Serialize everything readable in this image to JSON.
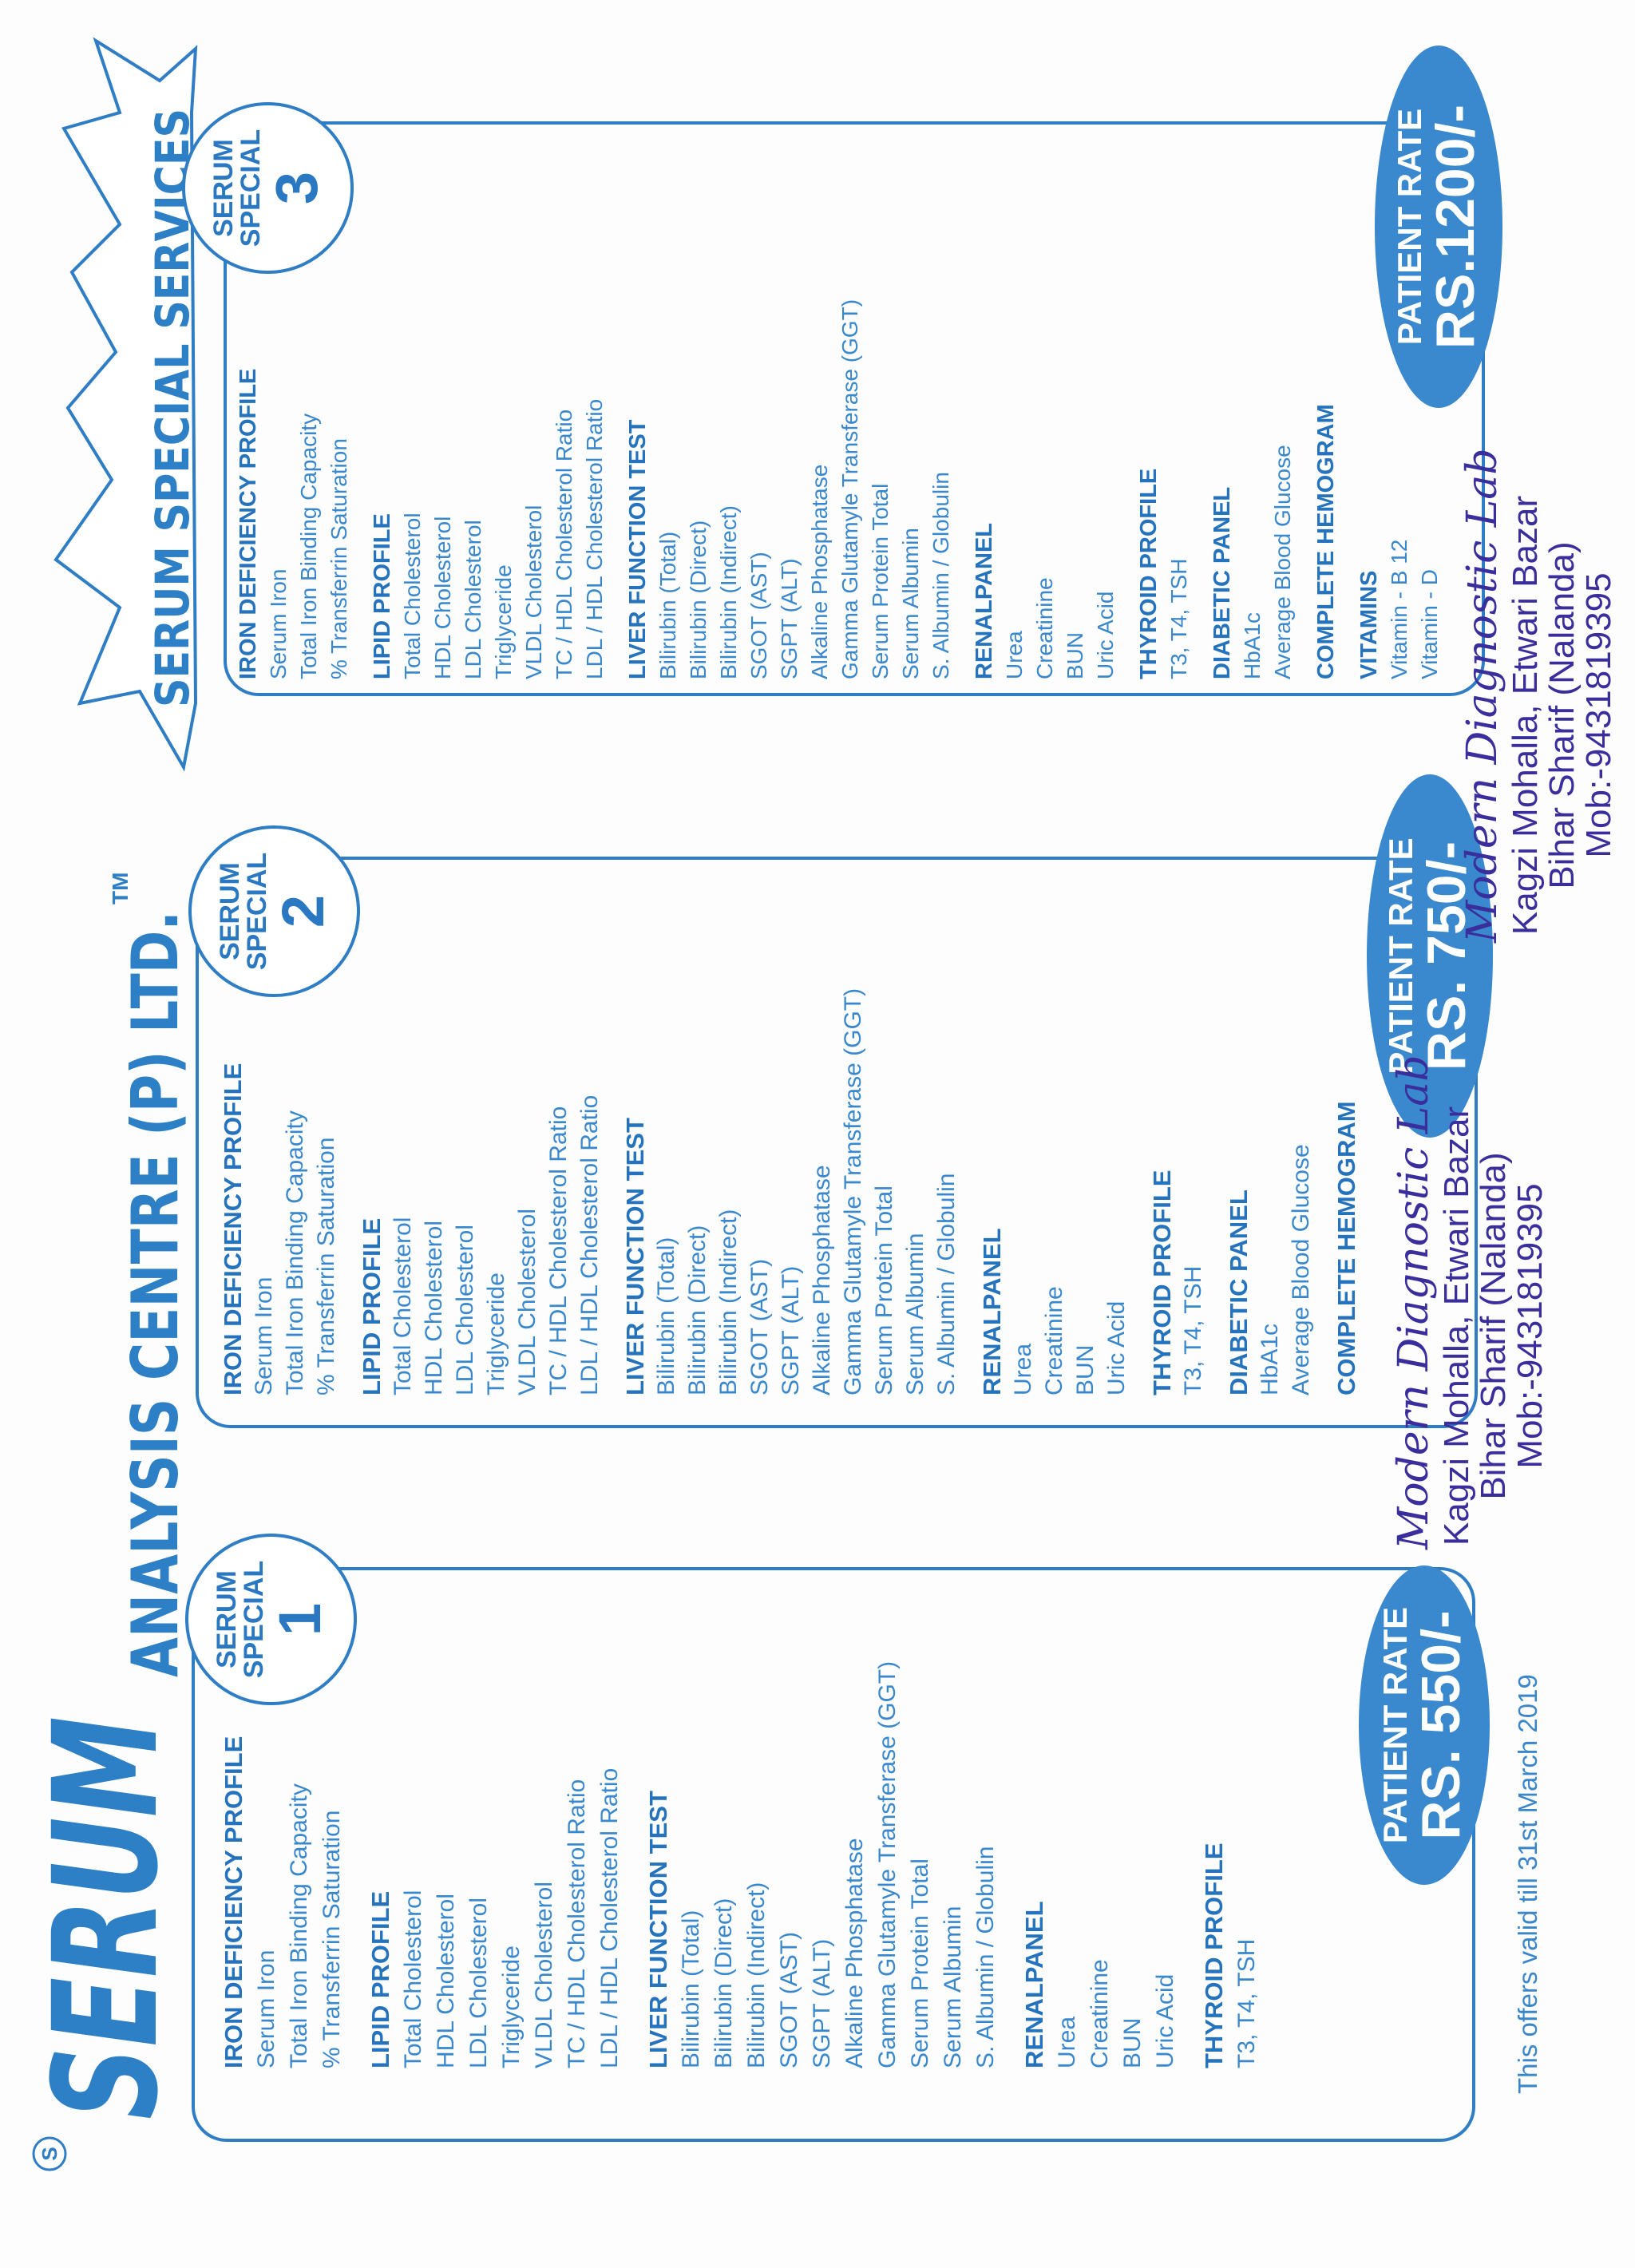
{
  "brand": {
    "mark": "S",
    "name": "SERUM",
    "company": "ANALYSIS CENTRE (P) LTD.",
    "tm": "TM"
  },
  "banner": {
    "title": "SERUM SPECIAL SERVICES"
  },
  "colors": {
    "primary_blue": "#2e7dc5",
    "oval_blue": "#3a88cd",
    "stamp_purple": "#3a2e9c"
  },
  "packages": [
    {
      "badge": {
        "line1": "SERUM",
        "line2": "SPECIAL",
        "number": "1"
      },
      "rate": {
        "label": "PATIENT RATE",
        "price": "RS. 550/-"
      },
      "sections": [
        {
          "heading": "IRON DEFICIENCY PROFILE",
          "items": [
            "Serum Iron",
            "Total Iron Binding Capacity",
            "% Transferrin Saturation"
          ]
        },
        {
          "heading": "LIPID PROFILE",
          "items": [
            "Total Cholesterol",
            "HDL Cholesterol",
            "LDL Cholesterol",
            "Triglyceride",
            "VLDL Cholesterol",
            "TC / HDL Cholesterol Ratio",
            "LDL / HDL Cholesterol Ratio"
          ]
        },
        {
          "heading": "LIVER FUNCTION TEST",
          "items": [
            "Bilirubin (Total)",
            "Bilirubin (Direct)",
            "Bilirubin (Indirect)",
            "SGOT (AST)",
            "SGPT (ALT)",
            "Alkaline Phosphatase",
            "Gamma Glutamyle Transferase (GGT)",
            "Serum Protein Total",
            "Serum Albumin",
            "S. Albumin / Globulin"
          ]
        },
        {
          "heading": "RENALPANEL",
          "items": [
            "Urea",
            "Creatinine",
            "BUN",
            "Uric Acid"
          ]
        },
        {
          "heading": "THYROID PROFILE",
          "items": [
            "T3, T4, TSH"
          ]
        }
      ]
    },
    {
      "badge": {
        "line1": "SERUM",
        "line2": "SPECIAL",
        "number": "2"
      },
      "rate": {
        "label": "PATIENT RATE",
        "price": "RS. 750/-"
      },
      "sections": [
        {
          "heading": "IRON DEFICIENCY PROFILE",
          "items": [
            "Serum Iron",
            "Total Iron Binding Capacity",
            "% Transferrin Saturation"
          ]
        },
        {
          "heading": "LIPID PROFILE",
          "items": [
            "Total Cholesterol",
            "HDL Cholesterol",
            "LDL Cholesterol",
            "Triglyceride",
            "VLDL Cholesterol",
            "TC / HDL Cholesterol Ratio",
            "LDL / HDL Cholesterol Ratio"
          ]
        },
        {
          "heading": "LIVER FUNCTION TEST",
          "items": [
            "Bilirubin (Total)",
            "Bilirubin (Direct)",
            "Bilirubin (Indirect)",
            "SGOT (AST)",
            "SGPT (ALT)",
            "Alkaline Phosphatase",
            "Gamma Glutamyle Transferase (GGT)",
            "Serum Protein Total",
            "Serum Albumin",
            "S. Albumin / Globulin"
          ]
        },
        {
          "heading": "RENALPANEL",
          "items": [
            "Urea",
            "Creatinine",
            "BUN",
            "Uric Acid"
          ]
        },
        {
          "heading": "THYROID PROFILE",
          "items": [
            "T3, T4, TSH"
          ]
        },
        {
          "heading": "DIABETIC PANEL",
          "items": [
            "HbA1c",
            "Average Blood Glucose"
          ]
        },
        {
          "heading": "COMPLETE HEMOGRAM",
          "items": []
        }
      ]
    },
    {
      "badge": {
        "line1": "SERUM",
        "line2": "SPECIAL",
        "number": "3"
      },
      "rate": {
        "label": "PATIENT RATE",
        "price": "RS.1200/-"
      },
      "sections": [
        {
          "heading": "IRON DEFICIENCY PROFILE",
          "items": [
            "Serum Iron",
            "Total Iron Binding Capacity",
            "% Transferrin Saturation"
          ]
        },
        {
          "heading": "LIPID PROFILE",
          "items": [
            "Total Cholesterol",
            "HDL Cholesterol",
            "LDL Cholesterol",
            "Triglyceride",
            "VLDL Cholesterol",
            "TC / HDL Cholesterol Ratio",
            "LDL / HDL Cholesterol Ratio"
          ]
        },
        {
          "heading": "LIVER FUNCTION TEST",
          "items": [
            "Bilirubin (Total)",
            "Bilirubin (Direct)",
            "Bilirubin (Indirect)",
            "SGOT (AST)",
            "SGPT (ALT)",
            "Alkaline Phosphatase",
            "Gamma Glutamyle Transferase (GGT)",
            "Serum Protein Total",
            "Serum Albumin",
            "S. Albumin / Globulin"
          ]
        },
        {
          "heading": "RENALPANEL",
          "items": [
            "Urea",
            "Creatinine",
            "BUN",
            "Uric Acid"
          ]
        },
        {
          "heading": "THYROID PROFILE",
          "items": [
            "T3, T4, TSH"
          ]
        },
        {
          "heading": "DIABETIC PANEL",
          "items": [
            "HbA1c",
            "Average Blood Glucose"
          ]
        },
        {
          "heading": "COMPLETE HEMOGRAM",
          "items": []
        },
        {
          "heading": "VITAMINS",
          "items": [
            "Vitamin - B 12",
            "Vitamin - D"
          ]
        }
      ]
    }
  ],
  "validity": "This offers valid till 31st March 2019",
  "stamps": [
    {
      "name": "Modern Diagnostic Lab",
      "address1": "Kagzi Mohalla, Etwari Bazar",
      "address2": "Bihar Sharif (Nalanda)",
      "phone": "Mob:-9431819395"
    },
    {
      "name": "Modern Diagnostic Lab",
      "address1": "Kagzi Mohalla, Etwari Bazar",
      "address2": "Bihar Sharif (Nalanda)",
      "phone": "Mob:-9431819395"
    }
  ]
}
